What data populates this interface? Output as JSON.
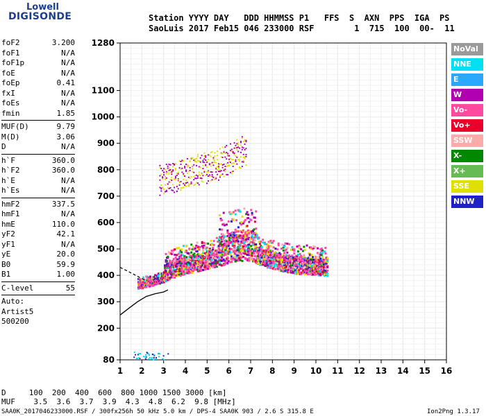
{
  "logo": {
    "brand_top": "Lowell",
    "brand_main": "DIGISONDE"
  },
  "header": {
    "line1": "Station YYYY DAY   DDD HHMMSS P1   FFS  S  AXN  PPS  IGA  PS",
    "line2": "SaoLuis 2017 Feb15 046 233000 RSF        1  715  100  00-  11"
  },
  "params": [
    {
      "name": "foF2",
      "value": "3.200"
    },
    {
      "name": "foF1",
      "value": "N/A"
    },
    {
      "name": "foF1p",
      "value": "N/A"
    },
    {
      "name": "foE",
      "value": "N/A"
    },
    {
      "name": "foEp",
      "value": "0.41"
    },
    {
      "name": "fxI",
      "value": "N/A"
    },
    {
      "name": "foEs",
      "value": "N/A"
    },
    {
      "name": "fmin",
      "value": "1.85"
    },
    {
      "name": "MUF(D)",
      "value": "9.79"
    },
    {
      "name": "M(D)",
      "value": "3.06"
    },
    {
      "name": "D",
      "value": "N/A"
    },
    {
      "name": "h`F",
      "value": "360.0"
    },
    {
      "name": "h`F2",
      "value": "360.0"
    },
    {
      "name": "h`E",
      "value": "N/A"
    },
    {
      "name": "h`Es",
      "value": "N/A"
    },
    {
      "name": "hmF2",
      "value": "337.5"
    },
    {
      "name": "hmF1",
      "value": "N/A"
    },
    {
      "name": "hmE",
      "value": "110.0"
    },
    {
      "name": "yF2",
      "value": "42.1"
    },
    {
      "name": "yF1",
      "value": "N/A"
    },
    {
      "name": "yE",
      "value": "20.0"
    },
    {
      "name": "B0",
      "value": "59.9"
    },
    {
      "name": "B1",
      "value": "1.00"
    },
    {
      "name": "C-level",
      "value": "55"
    }
  ],
  "auto": {
    "line1": "Auto:",
    "line2": "Artist5",
    "line3": "500200"
  },
  "legend": [
    {
      "label": "NoVal",
      "color": "#9a9a9a"
    },
    {
      "label": "NNE",
      "color": "#00e0f0"
    },
    {
      "label": "E",
      "color": "#2aa8ff"
    },
    {
      "label": "W",
      "color": "#b000b0"
    },
    {
      "label": "Vo-",
      "color": "#ff4aa0"
    },
    {
      "label": "Vo+",
      "color": "#e8002a"
    },
    {
      "label": "SSW",
      "color": "#ffaaaa"
    },
    {
      "label": "X-",
      "color": "#008800"
    },
    {
      "label": "X+",
      "color": "#66bb55"
    },
    {
      "label": "SSE",
      "color": "#e0e000"
    },
    {
      "label": "NNW",
      "color": "#2020c8"
    }
  ],
  "footer": {
    "d_row": "D     100  200  400  600  800 1000 1500 3000 [km]",
    "muf_row": "MUF    3.5  3.6  3.7  3.9  4.3  4.8  6.2  9.8 [MHz]",
    "file_line": "SAA0K_2017046233000.RSF / 300fx256h 50 kHz 5.0 km / DPS-4 SAA0K 903 / 2.6 S 315.8 E",
    "version": "Ion2Png 1.3.17"
  },
  "chart_data": {
    "type": "scatter",
    "title": "",
    "xlabel": "",
    "ylabel": "",
    "xlim": [
      1,
      16
    ],
    "ylim": [
      80,
      1280
    ],
    "x_ticks": [
      1,
      2,
      3,
      4,
      5,
      6,
      7,
      8,
      9,
      10,
      11,
      12,
      13,
      14,
      15,
      16
    ],
    "y_ticks": [
      80,
      200,
      300,
      400,
      500,
      600,
      700,
      800,
      900,
      1000,
      1100,
      1280
    ],
    "grid": true,
    "legend_position": "right",
    "ordinary_trace": {
      "x": [
        1.8,
        2.0,
        2.2,
        2.4,
        2.6,
        2.8,
        3.0,
        3.2,
        3.5,
        4.0,
        4.5,
        5.0,
        5.5,
        6.0,
        6.5,
        7.0,
        7.5,
        8.0,
        8.5,
        9.0,
        9.5,
        10.0,
        10.5
      ],
      "y": [
        365,
        368,
        372,
        375,
        380,
        385,
        390,
        400,
        410,
        420,
        430,
        440,
        450,
        460,
        470,
        470,
        450,
        440,
        430,
        420,
        420,
        415,
        410
      ]
    },
    "high_trace": {
      "x": [
        2.8,
        3.2,
        3.6,
        4.0,
        4.4,
        4.8,
        5.2,
        5.6,
        6.0,
        6.4,
        6.8
      ],
      "y": [
        760,
        770,
        780,
        790,
        800,
        805,
        815,
        825,
        840,
        860,
        880
      ]
    },
    "profile_solid": {
      "x": [
        1.0,
        1.4,
        1.8,
        2.2,
        2.6,
        3.0,
        3.2
      ],
      "y": [
        250,
        275,
        300,
        320,
        330,
        337,
        345
      ]
    },
    "profile_dashed": {
      "x": [
        1.0,
        1.3,
        1.6,
        1.9,
        2.2
      ],
      "y": [
        430,
        418,
        405,
        392,
        380
      ]
    }
  }
}
